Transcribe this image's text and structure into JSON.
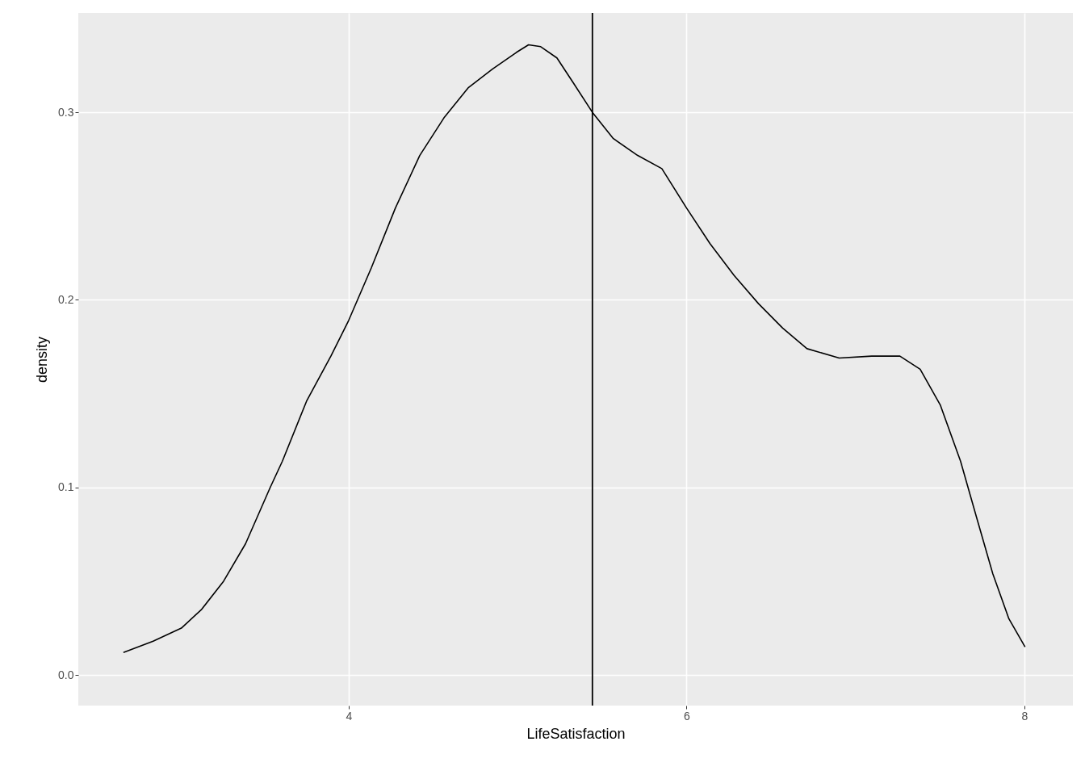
{
  "chart_data": {
    "type": "line",
    "xlabel": "LifeSatisfaction",
    "ylabel": "density",
    "x": [
      2.667,
      2.843,
      3.01,
      3.13,
      3.26,
      3.39,
      3.536,
      3.608,
      3.751,
      3.895,
      4.0,
      4.134,
      4.277,
      4.421,
      4.564,
      4.707,
      4.851,
      4.994,
      5.065,
      5.137,
      5.233,
      5.328,
      5.443,
      5.567,
      5.711,
      5.854,
      6.0,
      6.139,
      6.282,
      6.426,
      6.569,
      6.713,
      6.904,
      7.096,
      7.263,
      7.383,
      7.502,
      7.622,
      7.717,
      7.813,
      7.908,
      8.004
    ],
    "series": [
      {
        "color": "#000000",
        "values": [
          0.012,
          0.018,
          0.025,
          0.035,
          0.05,
          0.07,
          0.1,
          0.114,
          0.146,
          0.17,
          0.189,
          0.217,
          0.249,
          0.277,
          0.297,
          0.313,
          0.323,
          0.332,
          0.336,
          0.335,
          0.329,
          0.316,
          0.3,
          0.286,
          0.277,
          0.27,
          0.249,
          0.23,
          0.213,
          0.198,
          0.185,
          0.174,
          0.169,
          0.17,
          0.17,
          0.163,
          0.144,
          0.114,
          0.084,
          0.054,
          0.03,
          0.015
        ]
      }
    ],
    "xlim": [
      2.4,
      8.287
    ],
    "ylim": [
      -0.0163,
      0.353
    ],
    "xticks": [
      4,
      6,
      8
    ],
    "yticks": [
      {
        "value": 0,
        "label": "0.0"
      },
      0.1,
      0.2,
      0.3
    ],
    "ref_lines": [
      {
        "axis": "x",
        "value": 5.443,
        "color": "#000000"
      }
    ],
    "grid": true,
    "marker": "none",
    "line_style": "solid"
  }
}
